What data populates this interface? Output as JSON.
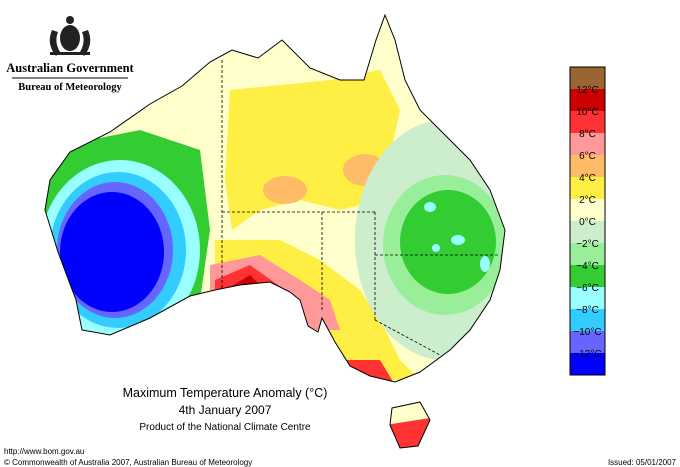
{
  "header": {
    "government": "Australian Government",
    "agency": "Bureau of Meteorology"
  },
  "map": {
    "title": "Maximum Temperature Anomaly (°C)",
    "date": "4th January 2007",
    "credit": "Product of the National Climate Centre"
  },
  "legend": {
    "colors": [
      "#996633",
      "#cc0000",
      "#ff3333",
      "#ff9999",
      "#ffbb66",
      "#ffee44",
      "#ffffcc",
      "#cceecc",
      "#99ee99",
      "#33cc33",
      "#99ffff",
      "#33ccff",
      "#6666ff",
      "#0000ff"
    ],
    "labels": [
      "12°C",
      "10°C",
      "8°C",
      "6°C",
      "4°C",
      "2°C",
      "0°C",
      "−2°C",
      "−4°C",
      "−6°C",
      "−8°C",
      "−10°C",
      "−12°C"
    ]
  },
  "footer": {
    "url": "http://www.bom.gov.au",
    "copyright": "© Commonwealth of Australia 2007, Australian Bureau of Meteorology",
    "issued": "Issued: 05/01/2007"
  }
}
